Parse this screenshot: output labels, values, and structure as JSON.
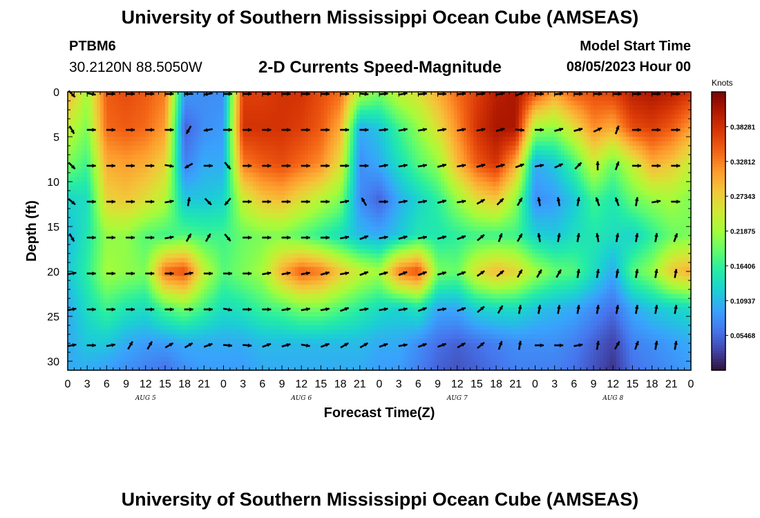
{
  "header": {
    "title": "University of Southern Mississippi Ocean Cube (AMSEAS)",
    "station_id": "PTBM6",
    "coordinates": "30.2120N  88.5050W",
    "subtitle": "2-D Currents Speed-Magnitude",
    "model_start_label": "Model Start Time",
    "model_start_value": "08/05/2023 Hour 00"
  },
  "footer": {
    "title": "University of Southern Mississippi Ocean Cube (AMSEAS)"
  },
  "colorbar": {
    "unit_label": "Knots",
    "tick_labels": [
      "0.38281",
      "0.32812",
      "0.27343",
      "0.21875",
      "0.16406",
      "0.10937",
      "0.05468"
    ],
    "tick_values": [
      0.38281,
      0.32812,
      0.27343,
      0.21875,
      0.16406,
      0.10937,
      0.05468
    ],
    "range": [
      0.0,
      0.4375
    ]
  },
  "chart_data": {
    "type": "heatmap",
    "title": "2-D Currents Speed-Magnitude",
    "xlabel": "Forecast Time(Z)",
    "ylabel": "Depth (ft)",
    "x_unit": "hours from 08/05/2023 00Z",
    "xlim": [
      0,
      96
    ],
    "ylim": [
      0,
      31
    ],
    "y_inverted": true,
    "x_ticks": [
      0,
      3,
      6,
      9,
      12,
      15,
      18,
      21,
      24,
      27,
      30,
      33,
      36,
      39,
      42,
      45,
      48,
      51,
      54,
      57,
      60,
      63,
      66,
      69,
      72,
      75,
      78,
      81,
      84,
      87,
      90,
      93,
      96
    ],
    "x_tick_labels": [
      "0",
      "3",
      "6",
      "9",
      "12",
      "15",
      "18",
      "21",
      "0",
      "3",
      "6",
      "9",
      "12",
      "15",
      "18",
      "21",
      "0",
      "3",
      "6",
      "9",
      "12",
      "15",
      "18",
      "21",
      "0",
      "3",
      "6",
      "9",
      "12",
      "15",
      "18",
      "21",
      "0"
    ],
    "day_labels": [
      {
        "hour": 12,
        "label": "AUG 5"
      },
      {
        "hour": 36,
        "label": "AUG 6"
      },
      {
        "hour": 60,
        "label": "AUG 7"
      },
      {
        "hour": 84,
        "label": "AUG 8"
      }
    ],
    "y_ticks": [
      0,
      5,
      10,
      15,
      20,
      25,
      30
    ],
    "y_tick_labels": [
      "0",
      "5",
      "10",
      "15",
      "20",
      "25",
      "30"
    ],
    "colorscale": [
      "#30123b",
      "#4145ab",
      "#4675ed",
      "#39a2fc",
      "#1bcfd4",
      "#24eca6",
      "#61fc6c",
      "#a4fc3b",
      "#d1e834",
      "#f3c63a",
      "#fe9b2d",
      "#f36315",
      "#d93806",
      "#b11901",
      "#7a0403"
    ],
    "vmin": 0.0,
    "vmax": 0.4375,
    "speed_field": {
      "x_hours": [
        0,
        3,
        6,
        9,
        12,
        15,
        18,
        21,
        24,
        27,
        30,
        33,
        36,
        39,
        42,
        45,
        48,
        51,
        54,
        57,
        60,
        63,
        66,
        69,
        72,
        75,
        78,
        81,
        84,
        87,
        90,
        93,
        96
      ],
      "depth_ft": [
        0,
        4,
        8,
        12,
        16,
        20,
        24,
        28,
        31
      ],
      "values_knots": [
        [
          0.3,
          0.22,
          0.35,
          0.36,
          0.35,
          0.33,
          0.09,
          0.08,
          0.08,
          0.37,
          0.37,
          0.38,
          0.38,
          0.36,
          0.34,
          0.23,
          0.2,
          0.24,
          0.26,
          0.3,
          0.34,
          0.37,
          0.4,
          0.41,
          0.36,
          0.31,
          0.35,
          0.36,
          0.37,
          0.4,
          0.41,
          0.4,
          0.38
        ],
        [
          0.24,
          0.2,
          0.34,
          0.35,
          0.34,
          0.31,
          0.05,
          0.08,
          0.09,
          0.38,
          0.38,
          0.38,
          0.37,
          0.35,
          0.3,
          0.1,
          0.12,
          0.17,
          0.21,
          0.26,
          0.32,
          0.38,
          0.41,
          0.41,
          0.22,
          0.21,
          0.26,
          0.32,
          0.3,
          0.36,
          0.37,
          0.35,
          0.31
        ],
        [
          0.2,
          0.17,
          0.3,
          0.31,
          0.3,
          0.27,
          0.07,
          0.1,
          0.1,
          0.33,
          0.35,
          0.36,
          0.34,
          0.32,
          0.26,
          0.08,
          0.1,
          0.14,
          0.18,
          0.21,
          0.29,
          0.35,
          0.38,
          0.3,
          0.1,
          0.12,
          0.17,
          0.24,
          0.19,
          0.24,
          0.3,
          0.28,
          0.24
        ],
        [
          0.13,
          0.14,
          0.27,
          0.28,
          0.26,
          0.23,
          0.12,
          0.12,
          0.13,
          0.24,
          0.28,
          0.29,
          0.26,
          0.23,
          0.2,
          0.08,
          0.05,
          0.1,
          0.13,
          0.16,
          0.21,
          0.26,
          0.28,
          0.21,
          0.08,
          0.09,
          0.12,
          0.17,
          0.15,
          0.19,
          0.21,
          0.22,
          0.2
        ],
        [
          0.11,
          0.15,
          0.21,
          0.21,
          0.18,
          0.17,
          0.18,
          0.17,
          0.17,
          0.19,
          0.2,
          0.2,
          0.18,
          0.16,
          0.14,
          0.11,
          0.1,
          0.12,
          0.15,
          0.15,
          0.16,
          0.17,
          0.17,
          0.17,
          0.13,
          0.12,
          0.14,
          0.15,
          0.14,
          0.13,
          0.16,
          0.19,
          0.2
        ],
        [
          0.12,
          0.16,
          0.22,
          0.21,
          0.2,
          0.34,
          0.36,
          0.24,
          0.18,
          0.2,
          0.22,
          0.3,
          0.35,
          0.33,
          0.28,
          0.24,
          0.22,
          0.33,
          0.36,
          0.2,
          0.19,
          0.26,
          0.29,
          0.27,
          0.22,
          0.19,
          0.18,
          0.14,
          0.1,
          0.18,
          0.21,
          0.28,
          0.3
        ],
        [
          0.1,
          0.14,
          0.17,
          0.15,
          0.14,
          0.18,
          0.2,
          0.17,
          0.14,
          0.15,
          0.17,
          0.18,
          0.2,
          0.2,
          0.18,
          0.16,
          0.14,
          0.13,
          0.15,
          0.1,
          0.1,
          0.13,
          0.14,
          0.14,
          0.12,
          0.11,
          0.1,
          0.08,
          0.06,
          0.1,
          0.12,
          0.13,
          0.14
        ],
        [
          0.1,
          0.12,
          0.12,
          0.1,
          0.09,
          0.09,
          0.1,
          0.1,
          0.1,
          0.1,
          0.11,
          0.11,
          0.11,
          0.11,
          0.11,
          0.11,
          0.1,
          0.1,
          0.08,
          0.06,
          0.05,
          0.06,
          0.07,
          0.08,
          0.08,
          0.08,
          0.07,
          0.05,
          0.03,
          0.07,
          0.08,
          0.09,
          0.1
        ],
        [
          0.1,
          0.1,
          0.09,
          0.08,
          0.07,
          0.06,
          0.08,
          0.09,
          0.09,
          0.09,
          0.1,
          0.1,
          0.1,
          0.1,
          0.1,
          0.1,
          0.09,
          0.09,
          0.07,
          0.05,
          0.04,
          0.05,
          0.06,
          0.07,
          0.07,
          0.07,
          0.06,
          0.04,
          0.02,
          0.06,
          0.07,
          0.08,
          0.09
        ]
      ]
    },
    "vectors": {
      "note": "Current direction arrows; angle in degrees (0 = pointing east/right, 90 = pointing up/north)",
      "x_hours": [
        0,
        3,
        6,
        9,
        12,
        15,
        18,
        21,
        24,
        27,
        30,
        33,
        36,
        39,
        42,
        45,
        48,
        51,
        54,
        57,
        60,
        63,
        66,
        69,
        72,
        75,
        78,
        81,
        84,
        87,
        90,
        93
      ],
      "depth_ft": [
        0,
        4,
        8,
        12,
        16,
        20,
        24,
        28
      ],
      "angles_deg": [
        [
          -45,
          -10,
          0,
          0,
          0,
          0,
          -180,
          -170,
          0,
          0,
          0,
          0,
          0,
          0,
          0,
          -5,
          5,
          10,
          5,
          0,
          5,
          5,
          10,
          20,
          0,
          5,
          0,
          0,
          0,
          0,
          0,
          0
        ],
        [
          -60,
          0,
          0,
          0,
          0,
          0,
          -120,
          -170,
          0,
          0,
          0,
          0,
          0,
          0,
          0,
          0,
          5,
          10,
          10,
          10,
          10,
          10,
          15,
          -5,
          0,
          15,
          15,
          25,
          70,
          0,
          0,
          0
        ],
        [
          -45,
          0,
          0,
          0,
          0,
          -10,
          -150,
          0,
          -50,
          0,
          0,
          0,
          0,
          0,
          0,
          0,
          10,
          10,
          10,
          15,
          10,
          15,
          15,
          20,
          10,
          25,
          45,
          90,
          70,
          0,
          0,
          0
        ],
        [
          -40,
          0,
          0,
          0,
          0,
          10,
          80,
          -45,
          -130,
          0,
          0,
          0,
          0,
          0,
          10,
          120,
          0,
          10,
          10,
          15,
          10,
          30,
          45,
          60,
          100,
          100,
          80,
          110,
          110,
          80,
          10,
          0
        ],
        [
          -60,
          0,
          0,
          0,
          0,
          10,
          60,
          60,
          -50,
          0,
          0,
          0,
          0,
          0,
          10,
          20,
          10,
          15,
          10,
          15,
          20,
          40,
          70,
          60,
          100,
          80,
          80,
          100,
          80,
          80,
          80,
          70
        ],
        [
          10,
          0,
          0,
          0,
          0,
          0,
          10,
          0,
          0,
          0,
          10,
          10,
          10,
          15,
          10,
          20,
          15,
          20,
          20,
          15,
          20,
          35,
          40,
          60,
          60,
          60,
          80,
          80,
          80,
          80,
          80,
          80
        ],
        [
          10,
          0,
          0,
          0,
          0,
          0,
          0,
          0,
          -10,
          0,
          0,
          10,
          10,
          10,
          20,
          10,
          10,
          10,
          20,
          10,
          20,
          40,
          60,
          80,
          80,
          80,
          80,
          80,
          80,
          80,
          80,
          80
        ],
        [
          10,
          0,
          10,
          60,
          60,
          30,
          30,
          20,
          -5,
          -5,
          20,
          15,
          -10,
          20,
          30,
          30,
          20,
          10,
          20,
          20,
          30,
          40,
          70,
          80,
          0,
          0,
          10,
          80,
          60,
          70,
          80,
          80
        ]
      ]
    }
  }
}
